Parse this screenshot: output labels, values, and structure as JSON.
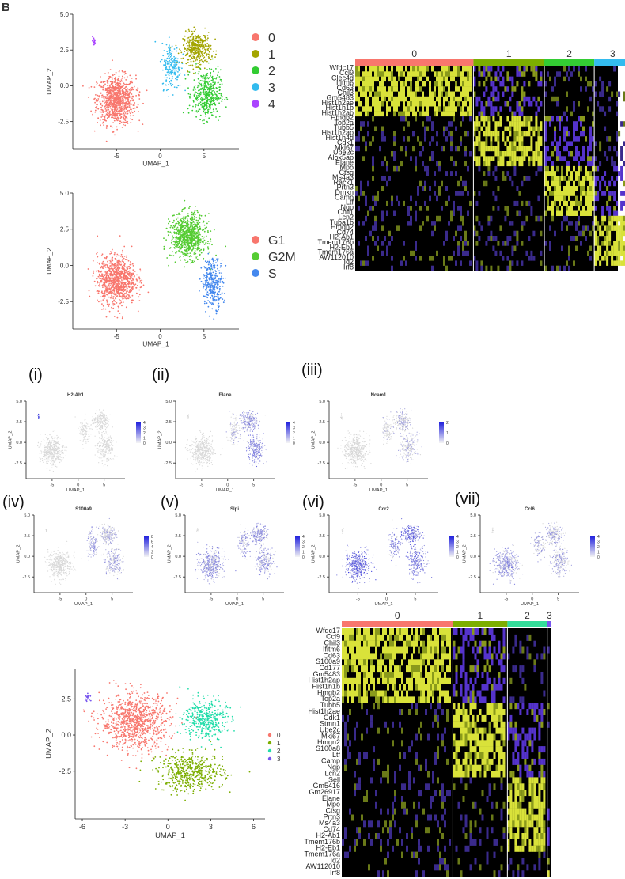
{
  "figure": {
    "corner_letter": "B"
  },
  "chart_data": [
    {
      "id": "umap_clusters_top",
      "type": "scatter",
      "title": "",
      "xlabel": "UMAP_1",
      "ylabel": "UMAP_2",
      "xticks": [
        -5,
        0,
        5
      ],
      "yticks": [
        5.0,
        2.5,
        0.0,
        -2.5
      ],
      "yticklabels": [
        "5.0",
        "2.5",
        "0.0",
        "-2.5"
      ],
      "xlim": [
        -10,
        9
      ],
      "ylim": [
        -4.4,
        5
      ],
      "legend_position": "right",
      "series": [
        {
          "name": "0",
          "color": "#f8766d",
          "centroid": [
            -5.0,
            -1.0
          ],
          "spread": [
            2.2,
            1.7
          ]
        },
        {
          "name": "1",
          "color": "#a3a500",
          "centroid": [
            4.2,
            2.6
          ],
          "spread": [
            1.6,
            1.1
          ]
        },
        {
          "name": "2",
          "color": "#33cc33",
          "centroid": [
            5.3,
            -0.6
          ],
          "spread": [
            1.6,
            1.7
          ]
        },
        {
          "name": "3",
          "color": "#33bbee",
          "centroid": [
            1.3,
            1.4
          ],
          "spread": [
            1.1,
            1.6
          ]
        },
        {
          "name": "4",
          "color": "#aa44ff",
          "centroid": [
            -7.6,
            3.1
          ],
          "spread": [
            0.2,
            0.3
          ]
        }
      ]
    },
    {
      "id": "umap_phase",
      "type": "scatter",
      "title": "",
      "xlabel": "UMAP_1",
      "ylabel": "UMAP_2",
      "xticks": [
        -5,
        0,
        5
      ],
      "yticks": [
        5.0,
        2.5,
        0.0,
        -2.5
      ],
      "yticklabels": [
        "5.0",
        "2.5",
        "0.0",
        "-2.5"
      ],
      "xlim": [
        -10,
        9
      ],
      "ylim": [
        -4.4,
        5
      ],
      "legend_position": "right",
      "series": [
        {
          "name": "G1",
          "color": "#f8766d",
          "centroid": [
            -5.0,
            -1.0
          ],
          "spread": [
            2.2,
            1.7
          ]
        },
        {
          "name": "G2M",
          "color": "#55cc33",
          "centroid": [
            3.2,
            2.0
          ],
          "spread": [
            2.0,
            1.5
          ]
        },
        {
          "name": "S",
          "color": "#4488ee",
          "centroid": [
            6.0,
            -1.2
          ],
          "spread": [
            1.2,
            1.7
          ]
        }
      ]
    },
    {
      "id": "heatmap_top",
      "type": "heatmap",
      "clusters": [
        "0",
        "1",
        "2",
        "3",
        "4"
      ],
      "cluster_colors": [
        "#f8766d",
        "#7cae00",
        "#33cc33",
        "#33bbee",
        "#aa44ff"
      ],
      "cluster_fractions": [
        0.45,
        0.27,
        0.19,
        0.14,
        0.02
      ],
      "genes": [
        "Wfdc17",
        "Ccl9",
        "Clec4d",
        "Ifitm6",
        "Cd63",
        "Chil3",
        "Gm5483",
        "Hist1h2ae",
        "Hist1h1b",
        "Hist1h2ab",
        "Hmgb2",
        "Top2a",
        "Tubb5",
        "Hist1h2ap",
        "Hist1h4d",
        "Cdk1",
        "Mki67",
        "Ube2c",
        "Alox5ap",
        "Elane",
        "Mpo",
        "Ctsg",
        "Ms4a3",
        "Rack1",
        "Prtn3",
        "Dmkn",
        "Camp",
        "Ltf",
        "Ngp",
        "Chil1",
        "Lcn2",
        "Tuba1b",
        "Hmgn2",
        "Cd74",
        "H2-Ab1",
        "Tmem176b",
        "H2-Eb1",
        "Tmem176a",
        "AW112010",
        "Id2",
        "Irf8"
      ]
    },
    {
      "id": "feature_h2ab1",
      "type": "scatter",
      "title": "H2-Ab1",
      "xlabel": "UMAP_1",
      "ylabel": "UMAP_2",
      "xticks": [
        -5,
        0,
        5
      ],
      "yticks": [
        5.0,
        2.5,
        0.0,
        -2.5
      ],
      "yticklabels": [
        "5.0",
        "2.5",
        "0.0",
        "-2.5"
      ],
      "xlim": [
        -10,
        9
      ],
      "ylim": [
        -4.4,
        5
      ],
      "scale_ticks": [
        "4",
        "3",
        "2",
        "1",
        "0"
      ],
      "high_color": "#2222dd",
      "low_color": "#dddddd",
      "expression_by_cluster": [
        0.05,
        0.05,
        0.05,
        0.08,
        0.95
      ]
    },
    {
      "id": "feature_elane",
      "type": "scatter",
      "title": "Elane",
      "xlabel": "UMAP_1",
      "ylabel": "UMAP_2",
      "xticks": [
        -5,
        0,
        5
      ],
      "yticks": [
        5.0,
        2.5,
        0.0,
        -2.5
      ],
      "yticklabels": [
        "5.0",
        "2.5",
        "0.0",
        "-2.5"
      ],
      "xlim": [
        -10,
        9
      ],
      "ylim": [
        -4.4,
        5
      ],
      "scale_ticks": [
        "4",
        "3",
        "2",
        "1",
        "0"
      ],
      "high_color": "#2222dd",
      "low_color": "#dddddd",
      "expression_by_cluster": [
        0.08,
        0.45,
        0.55,
        0.3,
        0.05
      ]
    },
    {
      "id": "feature_ncam1",
      "type": "scatter",
      "title": "Ncam1",
      "xlabel": "UMAP_1",
      "ylabel": "UMAP_2",
      "xticks": [
        -5,
        0,
        5
      ],
      "yticks": [
        5.0,
        2.5,
        0.0,
        -2.5
      ],
      "yticklabels": [
        "5.0",
        "2.5",
        "0.0",
        "-2.5"
      ],
      "xlim": [
        -10,
        9
      ],
      "ylim": [
        -4.4,
        5
      ],
      "scale_ticks": [
        "2",
        "1",
        "0"
      ],
      "high_color": "#2222dd",
      "low_color": "#dddddd",
      "expression_by_cluster": [
        0.05,
        0.3,
        0.3,
        0.25,
        0.05
      ]
    },
    {
      "id": "feature_s100a9",
      "type": "scatter",
      "title": "S100a9",
      "xlabel": "UMAP_1",
      "ylabel": "UMAP_2",
      "xticks": [
        -5,
        0,
        5
      ],
      "yticks": [
        5.0,
        2.5,
        0.0,
        -2.5
      ],
      "yticklabels": [
        "5.0",
        "2.5",
        "0.0",
        "-2.5"
      ],
      "xlim": [
        -10,
        9
      ],
      "ylim": [
        -4.4,
        5
      ],
      "scale_ticks": [
        "8",
        "6",
        "4",
        "2",
        "0"
      ],
      "high_color": "#2222dd",
      "low_color": "#dddddd",
      "expression_by_cluster": [
        0.05,
        0.3,
        0.35,
        0.4,
        0.05
      ]
    },
    {
      "id": "feature_slpi",
      "type": "scatter",
      "title": "Slpi",
      "xlabel": "UMAP_1",
      "ylabel": "UMAP_2",
      "xticks": [
        -5,
        0,
        5
      ],
      "yticks": [
        5.0,
        2.5,
        0.0,
        -2.5
      ],
      "yticklabels": [
        "5.0",
        "2.5",
        "0.0",
        "-2.5"
      ],
      "xlim": [
        -10,
        9
      ],
      "ylim": [
        -4.4,
        5
      ],
      "scale_ticks": [
        "4",
        "3",
        "2",
        "1",
        "0"
      ],
      "high_color": "#2222dd",
      "low_color": "#dddddd",
      "expression_by_cluster": [
        0.45,
        0.45,
        0.45,
        0.4,
        0.1
      ]
    },
    {
      "id": "feature_ccr2",
      "type": "scatter",
      "title": "Ccr2",
      "xlabel": "UMAP_1",
      "ylabel": "UMAP_2",
      "xticks": [
        -5,
        0,
        5
      ],
      "yticks": [
        5.0,
        2.5,
        0.0,
        -2.5
      ],
      "yticklabels": [
        "5.0",
        "2.5",
        "0.0",
        "-2.5"
      ],
      "xlim": [
        -10,
        9
      ],
      "ylim": [
        -4.4,
        5
      ],
      "scale_ticks": [
        "4",
        "3",
        "2",
        "1",
        "0"
      ],
      "high_color": "#2222dd",
      "low_color": "#dddddd",
      "expression_by_cluster": [
        0.7,
        0.65,
        0.6,
        0.55,
        0.2
      ]
    },
    {
      "id": "feature_ccl6",
      "type": "scatter",
      "title": "Ccl6",
      "xlabel": "UMAP_1",
      "ylabel": "UMAP_2",
      "xticks": [
        -5,
        0,
        5
      ],
      "yticks": [
        5.0,
        2.5,
        0.0,
        -2.5
      ],
      "yticklabels": [
        "5.0",
        "2.5",
        "0.0",
        "-2.5"
      ],
      "xlim": [
        -10,
        9
      ],
      "ylim": [
        -4.4,
        5
      ],
      "scale_ticks": [
        "4",
        "3",
        "2",
        "1",
        "0"
      ],
      "high_color": "#2222dd",
      "low_color": "#dddddd",
      "expression_by_cluster": [
        0.45,
        0.35,
        0.35,
        0.35,
        0.1
      ]
    },
    {
      "id": "umap_clusters_bottom",
      "type": "scatter",
      "title": "",
      "xlabel": "UMAP_1",
      "ylabel": "UMAP_2",
      "xticks": [
        -6,
        -3,
        0,
        3,
        6
      ],
      "yticks": [
        2.5,
        0.0,
        -2.5
      ],
      "yticklabels": [
        "2.5",
        "0.0",
        "-2.5"
      ],
      "xlim": [
        -6.5,
        6.8
      ],
      "ylim": [
        -5.8,
        4.6
      ],
      "legend_position": "right",
      "series": [
        {
          "name": "0",
          "color": "#f8766d",
          "centroid": [
            -2.3,
            0.9
          ],
          "spread": [
            2.4,
            1.9
          ]
        },
        {
          "name": "1",
          "color": "#7cae00",
          "centroid": [
            1.6,
            -2.6
          ],
          "spread": [
            2.3,
            1.3
          ]
        },
        {
          "name": "2",
          "color": "#22ddaa",
          "centroid": [
            2.6,
            1.1
          ],
          "spread": [
            1.5,
            1.4
          ]
        },
        {
          "name": "3",
          "color": "#7755ee",
          "centroid": [
            -5.6,
            2.6
          ],
          "spread": [
            0.2,
            0.25
          ]
        }
      ]
    },
    {
      "id": "heatmap_bottom",
      "type": "heatmap",
      "clusters": [
        "0",
        "1",
        "2",
        "3"
      ],
      "cluster_colors": [
        "#f8766d",
        "#7cae00",
        "#33dd99",
        "#7755ee"
      ],
      "cluster_fractions": [
        0.53,
        0.26,
        0.19,
        0.02
      ],
      "genes": [
        "Wfdc17",
        "Ccl9",
        "Chil3",
        "Ifitm6",
        "Cd63",
        "S100a9",
        "Cd177",
        "Gm5483",
        "Hist1h2ap",
        "Hist1h1b",
        "Hmgb2",
        "Top2a",
        "Tubb5",
        "Hist1h2ae",
        "Cdk1",
        "Stmn1",
        "Ube2c",
        "Mki67",
        "Hmgn2",
        "S100a8",
        "Ltf",
        "Camp",
        "Ngp",
        "Lcn2",
        "Sell",
        "Gm5416",
        "Gm26917",
        "Elane",
        "Mpo",
        "Ctsg",
        "Prtn3",
        "Ms4a3",
        "Cd74",
        "H2-Ab1",
        "Tmem176b",
        "H2-Eb1",
        "Tmem176a",
        "Id2",
        "AW112010",
        "Irf8"
      ]
    }
  ]
}
